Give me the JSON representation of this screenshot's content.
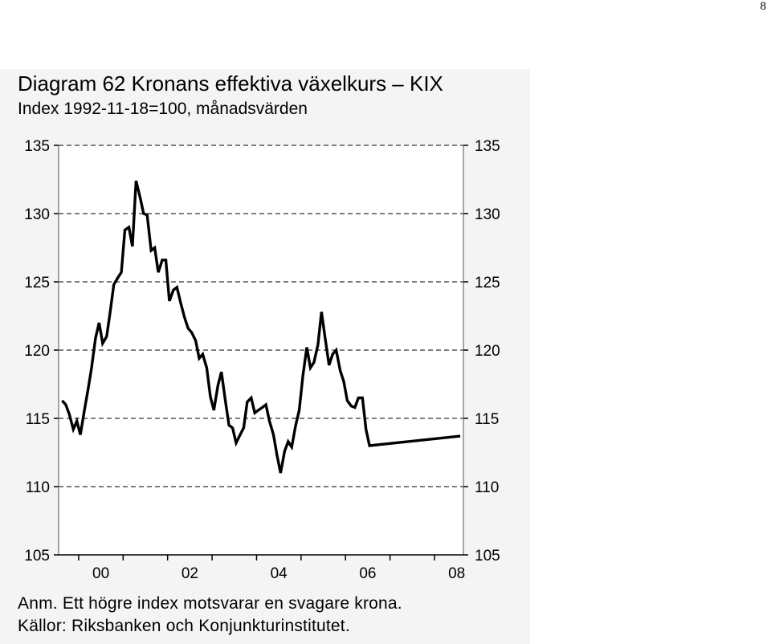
{
  "page": {
    "number": "8"
  },
  "chart_data": {
    "type": "line",
    "title": "Diagram 62 Kronans effektiva växelkurs – KIX",
    "subtitle": "Index 1992-11-18=100, månadsvärden",
    "xlabel": "",
    "ylabel": "",
    "ylim": [
      105,
      135
    ],
    "yticks": [
      105,
      110,
      115,
      120,
      125,
      130,
      135
    ],
    "ytick_labels": [
      "105",
      "110",
      "115",
      "120",
      "125",
      "130",
      "135"
    ],
    "xlim": [
      1999.55,
      2008.65
    ],
    "xtick_labels": [
      "00",
      "02",
      "04",
      "06",
      "08"
    ],
    "xtick_label_positions": [
      2000.5,
      2002.5,
      2004.5,
      2006.5,
      2008.5
    ],
    "year_ticks": [
      2000,
      2001,
      2002,
      2003,
      2004,
      2005,
      2006,
      2007,
      2008
    ],
    "grid": "horizontal dashed",
    "right_axis": "mirrored",
    "series": [
      {
        "name": "",
        "color": "#000000",
        "points": [
          [
            1999.63,
            116.3
          ],
          [
            1999.71,
            116.0
          ],
          [
            1999.79,
            115.3
          ],
          [
            1999.88,
            114.2
          ],
          [
            1999.96,
            114.8
          ],
          [
            2000.04,
            113.8
          ],
          [
            2000.13,
            115.6
          ],
          [
            2000.21,
            117.1
          ],
          [
            2000.29,
            118.7
          ],
          [
            2000.38,
            120.9
          ],
          [
            2000.46,
            122.0
          ],
          [
            2000.54,
            120.5
          ],
          [
            2000.63,
            121.0
          ],
          [
            2000.71,
            122.8
          ],
          [
            2000.79,
            124.8
          ],
          [
            2000.88,
            125.3
          ],
          [
            2000.96,
            125.7
          ],
          [
            2001.04,
            128.8
          ],
          [
            2001.13,
            129.0
          ],
          [
            2001.21,
            127.6
          ],
          [
            2001.29,
            132.4
          ],
          [
            2001.38,
            131.2
          ],
          [
            2001.46,
            130.0
          ],
          [
            2001.54,
            129.9
          ],
          [
            2001.63,
            127.3
          ],
          [
            2001.71,
            127.5
          ],
          [
            2001.79,
            125.7
          ],
          [
            2001.88,
            126.6
          ],
          [
            2001.96,
            126.6
          ],
          [
            2002.04,
            123.6
          ],
          [
            2002.13,
            124.4
          ],
          [
            2002.21,
            124.6
          ],
          [
            2002.29,
            123.5
          ],
          [
            2002.38,
            122.4
          ],
          [
            2002.46,
            121.6
          ],
          [
            2002.54,
            121.3
          ],
          [
            2002.63,
            120.7
          ],
          [
            2002.71,
            119.4
          ],
          [
            2002.79,
            119.7
          ],
          [
            2002.88,
            118.7
          ],
          [
            2002.96,
            116.6
          ],
          [
            2003.04,
            115.6
          ],
          [
            2003.13,
            117.4
          ],
          [
            2003.21,
            118.4
          ],
          [
            2003.29,
            116.5
          ],
          [
            2003.38,
            114.5
          ],
          [
            2003.46,
            114.3
          ],
          [
            2003.54,
            113.2
          ],
          [
            2003.63,
            113.8
          ],
          [
            2003.71,
            114.3
          ],
          [
            2003.79,
            116.2
          ],
          [
            2003.88,
            116.5
          ],
          [
            2003.96,
            115.4
          ],
          [
            2004.04,
            115.6
          ],
          [
            2004.13,
            115.8
          ],
          [
            2004.21,
            116.0
          ],
          [
            2004.29,
            114.8
          ],
          [
            2004.38,
            113.8
          ],
          [
            2004.46,
            112.3
          ],
          [
            2004.54,
            111.0
          ],
          [
            2004.63,
            112.6
          ],
          [
            2004.71,
            113.3
          ],
          [
            2004.79,
            112.9
          ],
          [
            2004.88,
            114.5
          ],
          [
            2004.96,
            115.6
          ],
          [
            2005.04,
            118.1
          ],
          [
            2005.13,
            120.2
          ],
          [
            2005.21,
            118.7
          ],
          [
            2005.29,
            119.1
          ],
          [
            2005.38,
            120.4
          ],
          [
            2005.46,
            122.8
          ],
          [
            2005.54,
            120.9
          ],
          [
            2005.63,
            118.9
          ],
          [
            2005.71,
            119.7
          ],
          [
            2005.79,
            120.0
          ],
          [
            2005.88,
            118.5
          ],
          [
            2005.96,
            117.7
          ],
          [
            2006.04,
            116.3
          ],
          [
            2006.13,
            115.9
          ],
          [
            2006.21,
            115.8
          ],
          [
            2006.29,
            116.5
          ],
          [
            2006.38,
            116.5
          ],
          [
            2006.46,
            114.2
          ],
          [
            2006.54,
            113.0
          ],
          [
            2008.58,
            113.7
          ]
        ]
      }
    ]
  },
  "notes": [
    "Anm. Ett högre index motsvarar en svagare krona.",
    "Källor: Riksbanken och Konjunkturinstitutet."
  ]
}
